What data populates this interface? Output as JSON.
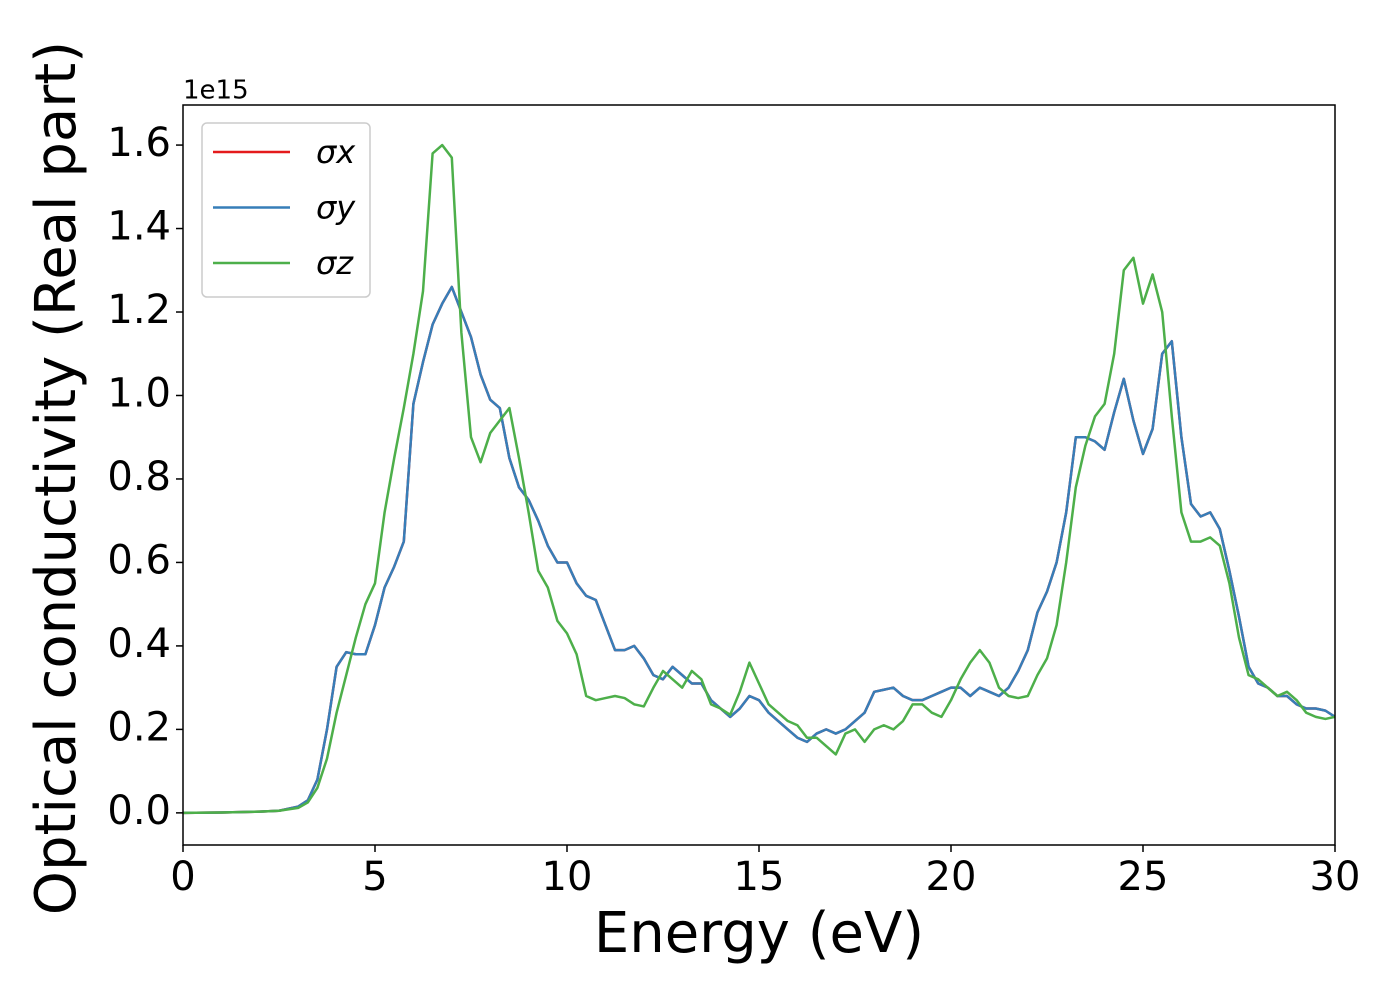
{
  "chart_data": {
    "type": "line",
    "x_label": "Energy (eV)",
    "y_label": "Optical conductivity (Real part)",
    "y_offset_label": "1e15",
    "xlim": [
      0,
      30
    ],
    "xticks": [
      0,
      5,
      10,
      15,
      20,
      25,
      30
    ],
    "ylim": [
      -0.077,
      1.696
    ],
    "yticks": [
      {
        "value": 0,
        "label": "0.0"
      },
      0.2,
      0.4,
      0.6,
      0.8,
      {
        "value": 1,
        "label": "1.0"
      },
      1.2,
      1.4,
      1.6
    ],
    "legend": "upper left",
    "x": [
      0,
      1,
      2,
      2.5,
      3,
      3.25,
      3.5,
      3.75,
      4,
      4.25,
      4.5,
      4.75,
      5,
      5.25,
      5.5,
      5.75,
      6,
      6.25,
      6.5,
      6.75,
      7,
      7.25,
      7.5,
      7.75,
      8,
      8.25,
      8.5,
      8.75,
      9,
      9.25,
      9.5,
      9.75,
      10,
      10.25,
      10.5,
      10.75,
      11,
      11.25,
      11.5,
      11.75,
      12,
      12.25,
      12.5,
      12.75,
      13,
      13.25,
      13.5,
      13.75,
      14,
      14.25,
      14.5,
      14.75,
      15,
      15.25,
      15.5,
      15.75,
      16,
      16.25,
      16.5,
      16.75,
      17,
      17.25,
      17.5,
      17.75,
      18,
      18.25,
      18.5,
      18.75,
      19,
      19.25,
      19.5,
      19.75,
      20,
      20.25,
      20.5,
      20.75,
      21,
      21.25,
      21.5,
      21.75,
      22,
      22.25,
      22.5,
      22.75,
      23,
      23.25,
      23.5,
      23.75,
      24,
      24.25,
      24.5,
      24.75,
      25,
      25.25,
      25.5,
      25.75,
      26,
      26.25,
      26.5,
      26.75,
      27,
      27.25,
      27.5,
      27.75,
      28,
      28.25,
      28.5,
      28.75,
      29,
      29.25,
      29.5,
      29.75,
      30
    ],
    "series": [
      {
        "name": "σx",
        "color": "#e41a1c",
        "values": [
          0,
          0.001,
          0.003,
          0.005,
          0.015,
          0.03,
          0.08,
          0.2,
          0.35,
          0.385,
          0.38,
          0.38,
          0.45,
          0.54,
          0.59,
          0.65,
          0.98,
          1.08,
          1.17,
          1.22,
          1.26,
          1.2,
          1.14,
          1.05,
          0.99,
          0.97,
          0.85,
          0.78,
          0.75,
          0.7,
          0.64,
          0.6,
          0.6,
          0.55,
          0.52,
          0.51,
          0.45,
          0.39,
          0.39,
          0.4,
          0.37,
          0.33,
          0.32,
          0.35,
          0.33,
          0.31,
          0.31,
          0.27,
          0.25,
          0.23,
          0.25,
          0.28,
          0.27,
          0.24,
          0.22,
          0.2,
          0.18,
          0.17,
          0.19,
          0.2,
          0.19,
          0.2,
          0.22,
          0.24,
          0.29,
          0.295,
          0.3,
          0.28,
          0.27,
          0.27,
          0.28,
          0.29,
          0.3,
          0.3,
          0.28,
          0.3,
          0.29,
          0.28,
          0.3,
          0.34,
          0.39,
          0.48,
          0.53,
          0.6,
          0.72,
          0.9,
          0.9,
          0.89,
          0.87,
          0.96,
          1.04,
          0.94,
          0.86,
          0.92,
          1.1,
          1.13,
          0.9,
          0.74,
          0.71,
          0.72,
          0.68,
          0.58,
          0.47,
          0.35,
          0.31,
          0.3,
          0.28,
          0.28,
          0.26,
          0.25,
          0.25,
          0.245,
          0.23
        ]
      },
      {
        "name": "σy",
        "color": "#377eb8",
        "values": [
          0,
          0.001,
          0.003,
          0.005,
          0.015,
          0.03,
          0.08,
          0.2,
          0.35,
          0.385,
          0.38,
          0.38,
          0.45,
          0.54,
          0.59,
          0.65,
          0.98,
          1.08,
          1.17,
          1.22,
          1.26,
          1.2,
          1.14,
          1.05,
          0.99,
          0.97,
          0.85,
          0.78,
          0.75,
          0.7,
          0.64,
          0.6,
          0.6,
          0.55,
          0.52,
          0.51,
          0.45,
          0.39,
          0.39,
          0.4,
          0.37,
          0.33,
          0.32,
          0.35,
          0.33,
          0.31,
          0.31,
          0.27,
          0.25,
          0.23,
          0.25,
          0.28,
          0.27,
          0.24,
          0.22,
          0.2,
          0.18,
          0.17,
          0.19,
          0.2,
          0.19,
          0.2,
          0.22,
          0.24,
          0.29,
          0.295,
          0.3,
          0.28,
          0.27,
          0.27,
          0.28,
          0.29,
          0.3,
          0.3,
          0.28,
          0.3,
          0.29,
          0.28,
          0.3,
          0.34,
          0.39,
          0.48,
          0.53,
          0.6,
          0.72,
          0.9,
          0.9,
          0.89,
          0.87,
          0.96,
          1.04,
          0.94,
          0.86,
          0.92,
          1.1,
          1.13,
          0.9,
          0.74,
          0.71,
          0.72,
          0.68,
          0.58,
          0.47,
          0.35,
          0.31,
          0.3,
          0.28,
          0.28,
          0.26,
          0.25,
          0.25,
          0.245,
          0.23
        ]
      },
      {
        "name": "σz",
        "color": "#4daf4a",
        "values": [
          0,
          0.001,
          0.003,
          0.005,
          0.012,
          0.025,
          0.06,
          0.13,
          0.24,
          0.33,
          0.42,
          0.5,
          0.55,
          0.72,
          0.85,
          0.97,
          1.1,
          1.25,
          1.58,
          1.6,
          1.57,
          1.15,
          0.9,
          0.84,
          0.91,
          0.94,
          0.97,
          0.85,
          0.72,
          0.58,
          0.54,
          0.46,
          0.43,
          0.38,
          0.28,
          0.27,
          0.275,
          0.28,
          0.275,
          0.26,
          0.255,
          0.3,
          0.34,
          0.32,
          0.3,
          0.34,
          0.32,
          0.26,
          0.25,
          0.235,
          0.29,
          0.36,
          0.31,
          0.26,
          0.24,
          0.22,
          0.21,
          0.18,
          0.18,
          0.16,
          0.14,
          0.19,
          0.2,
          0.17,
          0.2,
          0.21,
          0.2,
          0.22,
          0.26,
          0.26,
          0.24,
          0.23,
          0.27,
          0.32,
          0.36,
          0.39,
          0.36,
          0.3,
          0.28,
          0.275,
          0.28,
          0.33,
          0.37,
          0.45,
          0.6,
          0.78,
          0.88,
          0.95,
          0.98,
          1.1,
          1.3,
          1.33,
          1.22,
          1.29,
          1.2,
          0.95,
          0.72,
          0.65,
          0.65,
          0.66,
          0.64,
          0.55,
          0.42,
          0.33,
          0.32,
          0.3,
          0.28,
          0.29,
          0.27,
          0.24,
          0.23,
          0.225,
          0.23
        ]
      }
    ]
  }
}
